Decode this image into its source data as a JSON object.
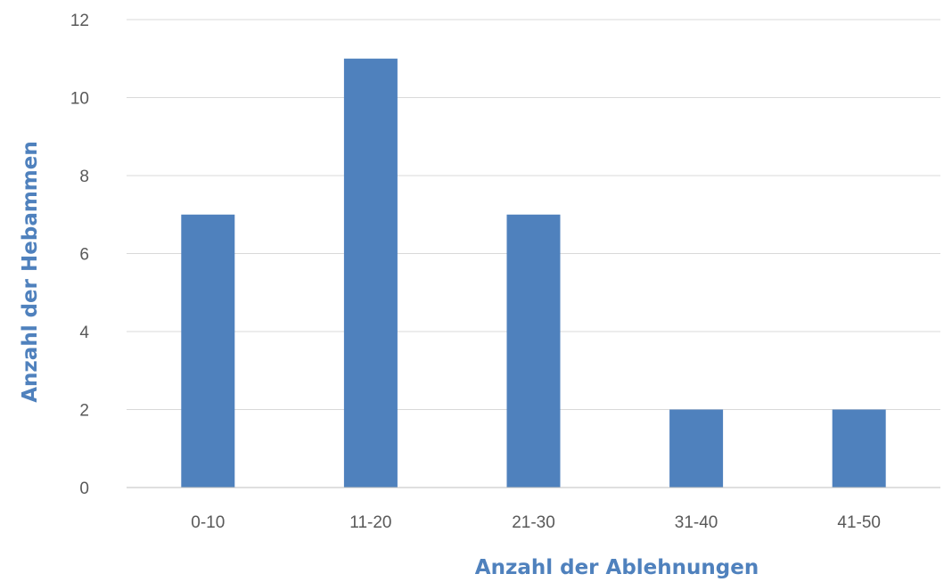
{
  "chart_data": {
    "type": "bar",
    "title": "",
    "xlabel": "Anzahl der Ablehnungen",
    "ylabel": "Anzahl der Hebammen",
    "categories": [
      "0-10",
      "11-20",
      "21-30",
      "31-40",
      "41-50"
    ],
    "values": [
      7,
      11,
      7,
      2,
      2
    ],
    "ylim": [
      0,
      12
    ],
    "yticks": [
      0,
      2,
      4,
      6,
      8,
      10,
      12
    ],
    "grid": "horizontal",
    "legend": "none",
    "bar_color": "#4f81bd",
    "axis_title_color": "#4f81bd",
    "grid_color": "#d9d9d9"
  }
}
